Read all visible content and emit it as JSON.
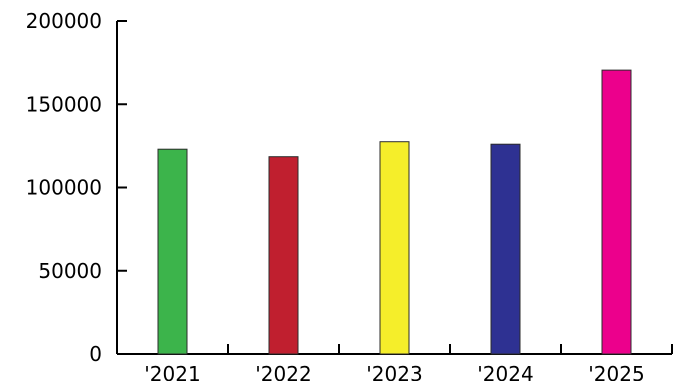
{
  "chart_data": {
    "type": "bar",
    "title": "",
    "xlabel": "",
    "ylabel": "",
    "categories": [
      "'2021",
      "'2022",
      "'2023",
      "'2024",
      "'2025"
    ],
    "values": [
      123000,
      118500,
      127500,
      126000,
      170500
    ],
    "colors": [
      "#3cb44b",
      "#c01f2f",
      "#f5ee2a",
      "#2e3192",
      "#ec008c"
    ],
    "ylim": [
      0,
      200000
    ],
    "yticks": [
      0,
      50000,
      100000,
      150000,
      200000
    ],
    "ytick_labels": [
      "0",
      "50000",
      "100000",
      "150000",
      "200000"
    ],
    "grid": false,
    "legend": "none"
  }
}
